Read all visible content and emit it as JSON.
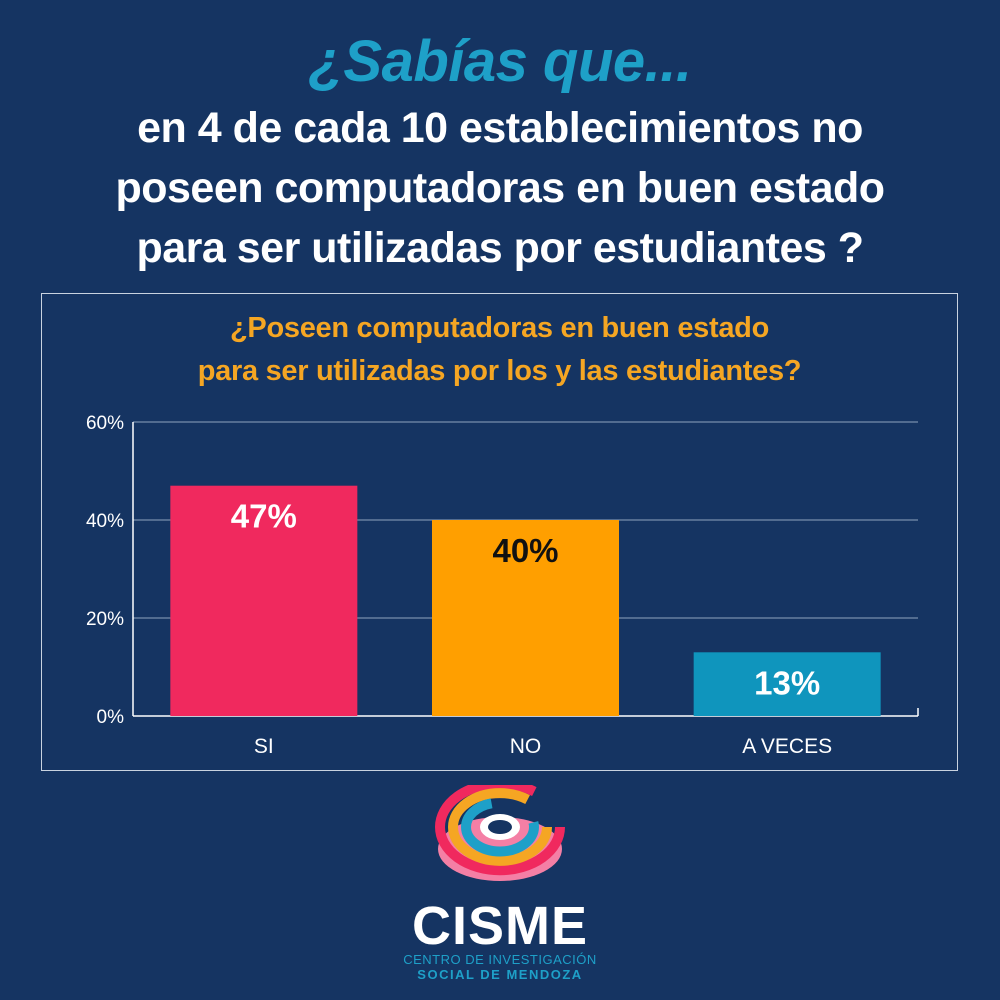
{
  "header": {
    "kicker": "¿Sabías que...",
    "line1": "en 4 de cada 10 establecimientos no",
    "line2": "poseen computadoras en buen estado",
    "line3": "para ser utilizadas por estudiantes ?"
  },
  "chart_data": {
    "type": "bar",
    "title_line1": "¿Poseen computadoras en buen estado",
    "title_line2": "para ser utilizadas por los y las estudiantes?",
    "categories": [
      "SI",
      "NO",
      "A VECES"
    ],
    "values": [
      47,
      40,
      13
    ],
    "data_labels": [
      "47%",
      "40%",
      "13%"
    ],
    "colors": [
      "#f0295e",
      "#ff9f00",
      "#0f95bd"
    ],
    "label_colors": [
      "#ffffff",
      "#111111",
      "#ffffff"
    ],
    "ylim": [
      0,
      60
    ],
    "yticks": [
      0,
      20,
      40,
      60
    ],
    "ytick_labels": [
      "0%",
      "20%",
      "40%",
      "60%"
    ],
    "grid": true,
    "legend": "none"
  },
  "brand": {
    "name": "CISME",
    "sub1": "CENTRO DE INVESTIGACIÓN",
    "sub2": "SOCIAL DE MENDOZA",
    "logo_colors": [
      "#1ea0c8",
      "#f5a623",
      "#f0295e",
      "#f47fa5"
    ]
  }
}
